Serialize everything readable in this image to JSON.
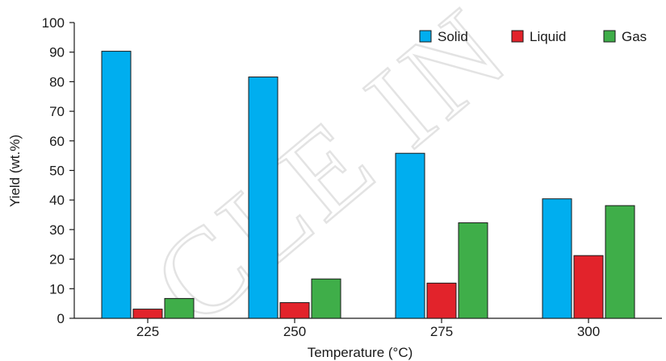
{
  "chart_data": {
    "type": "bar",
    "categories": [
      "225",
      "250",
      "275",
      "300"
    ],
    "series": [
      {
        "name": "Solid",
        "color": "#00aeef",
        "values": [
          90.3,
          81.6,
          55.8,
          40.4
        ]
      },
      {
        "name": "Liquid",
        "color": "#e2232b",
        "values": [
          3.1,
          5.3,
          11.9,
          21.2
        ]
      },
      {
        "name": "Gas",
        "color": "#3fae49",
        "values": [
          6.7,
          13.3,
          32.3,
          38.1
        ]
      }
    ],
    "xlabel": "Temperature (°C)",
    "ylabel": "Yield (wt.%)",
    "ylim": [
      0,
      100
    ],
    "yticks": [
      0,
      10,
      20,
      30,
      40,
      50,
      60,
      70,
      80,
      90,
      100
    ],
    "grid": false,
    "legend_position": "top-right"
  },
  "watermark_text": "CLE IN"
}
